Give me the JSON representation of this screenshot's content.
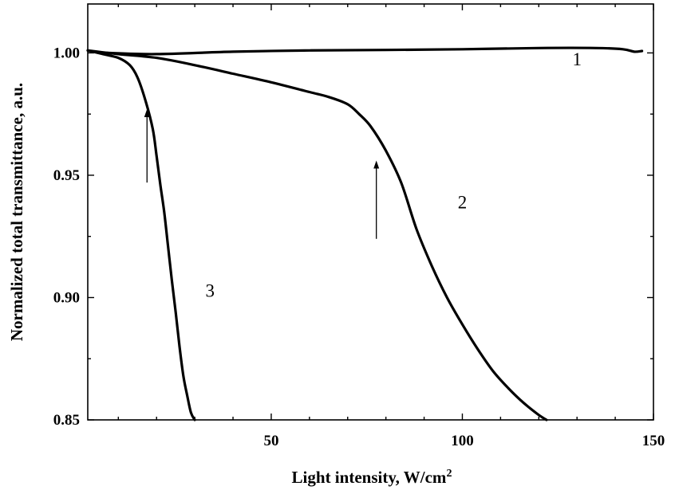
{
  "chart_data": {
    "type": "line",
    "title": "",
    "xlabel": "Light intensity, W/cm",
    "xlabel_superscript": "2",
    "ylabel": "Normalized total transmittance, a.u.",
    "xlim": [
      2,
      150
    ],
    "ylim": [
      0.85,
      1.02
    ],
    "grid": false,
    "x_ticks": [
      50,
      100,
      150
    ],
    "x_tick_labels": [
      "50",
      "100",
      "150"
    ],
    "y_ticks": [
      0.85,
      0.9,
      0.95,
      1.0
    ],
    "y_tick_labels": [
      "0.85",
      "0.90",
      "0.95",
      "1.00"
    ],
    "series": [
      {
        "name": "1",
        "x": [
          7,
          20,
          40,
          60,
          80,
          100,
          120,
          135,
          142,
          145,
          147
        ],
        "y": [
          1.0,
          0.9995,
          1.0005,
          1.001,
          1.0012,
          1.0015,
          1.002,
          1.002,
          1.0015,
          1.0005,
          1.0008
        ]
      },
      {
        "name": "2",
        "x": [
          2,
          10,
          20,
          30,
          40,
          50,
          60,
          65,
          70,
          73,
          76,
          80,
          84,
          88,
          92,
          96,
          100,
          104,
          108,
          112,
          116,
          120,
          122
        ],
        "y": [
          1.001,
          0.9995,
          0.998,
          0.995,
          0.9915,
          0.988,
          0.984,
          0.982,
          0.979,
          0.975,
          0.97,
          0.96,
          0.947,
          0.928,
          0.913,
          0.9,
          0.889,
          0.879,
          0.87,
          0.863,
          0.857,
          0.852,
          0.85
        ]
      },
      {
        "name": "3",
        "x": [
          2,
          6,
          10,
          13,
          15,
          17,
          19,
          20,
          21,
          22,
          23,
          24,
          25,
          26,
          27,
          28,
          29,
          30
        ],
        "y": [
          1.001,
          0.9995,
          0.998,
          0.995,
          0.99,
          0.981,
          0.969,
          0.958,
          0.946,
          0.935,
          0.921,
          0.907,
          0.894,
          0.88,
          0.868,
          0.86,
          0.853,
          0.85
        ]
      }
    ],
    "annotations": [
      {
        "text": "1",
        "x": 130,
        "y": 0.9975
      },
      {
        "text": "2",
        "x": 100,
        "y": 0.939
      },
      {
        "text": "3",
        "x": 34,
        "y": 0.903
      }
    ],
    "arrows": [
      {
        "x": 17.5,
        "y_from": 0.947,
        "y_to": 0.977
      },
      {
        "x": 77.5,
        "y_from": 0.924,
        "y_to": 0.956
      }
    ]
  }
}
